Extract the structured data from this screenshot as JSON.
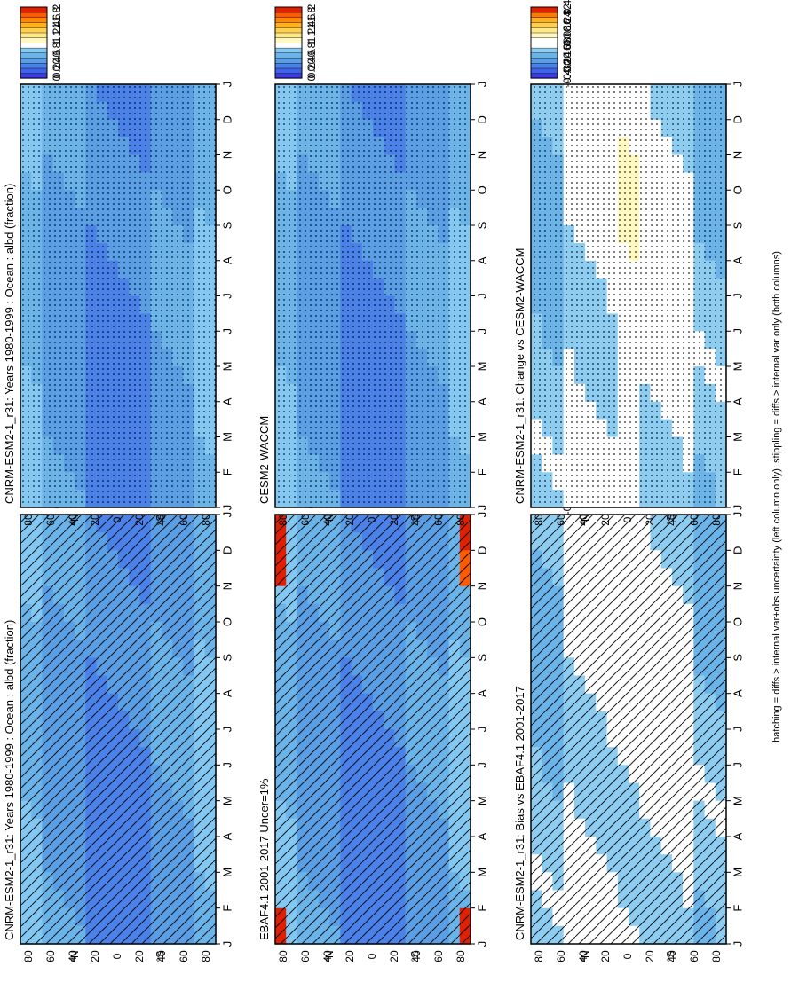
{
  "footer_note": "hatching = diffs > internal var+obs uncertainty (left column only); stippling = diffs > internal var only (both columns)",
  "colors": {
    "abs_scale": [
      "#3a3ae8",
      "#3f62e6",
      "#4b82ea",
      "#5a9ee6",
      "#6ab4ea",
      "#82c8f2",
      "#ffffff",
      "#fff8c0",
      "#ffe88a",
      "#ffd050",
      "#ffb020",
      "#ff8800",
      "#ff5a00",
      "#e02000"
    ],
    "diff_scale": [
      "#3a3ae8",
      "#3f62e6",
      "#4b82ea",
      "#5a9ee6",
      "#6ab4ea",
      "#8ecdf2",
      "#ffffff",
      "#ffffff",
      "#fff8c0",
      "#ffe88a",
      "#ffd050",
      "#ffb020",
      "#ff7a00",
      "#e02000"
    ]
  },
  "chart_data": [
    {
      "id": "model_abs",
      "type": "heatmap",
      "title": "CNRM-ESM2-1_r31: Years 1980-1999 : Ocean : albd (fraction)",
      "x_months": [
        "J",
        "F",
        "M",
        "A",
        "M",
        "J",
        "J",
        "A",
        "S",
        "O",
        "N",
        "D",
        "J"
      ],
      "y_ticks": [
        "80",
        "60",
        "40",
        "20",
        "0",
        "20",
        "40",
        "60",
        "80"
      ],
      "y_labels": {
        "north": "°N",
        "south": "°S"
      },
      "ylim": [
        -90,
        90
      ],
      "colorbar_ticks": [
        "2",
        "1.8",
        "1.6",
        "1.4",
        "1.2",
        "1",
        "0.8",
        "0.6",
        "0.4",
        "0.2",
        "0"
      ],
      "overlay": "hatching"
    },
    {
      "id": "obs_abs",
      "type": "heatmap",
      "title": "EBAF4.1 2001-2017 Uncer=1%",
      "x_months": [
        "J",
        "F",
        "M",
        "A",
        "M",
        "J",
        "J",
        "A",
        "S",
        "O",
        "N",
        "D",
        "J"
      ],
      "y_ticks": [
        "80",
        "60",
        "40",
        "20",
        "0",
        "20",
        "40",
        "60",
        "80"
      ],
      "y_labels": {
        "north": "°N",
        "south": "°S"
      },
      "ylim": [
        -90,
        90
      ],
      "colorbar_ticks": [
        "2",
        "1.8",
        "1.6",
        "1.4",
        "1.2",
        "1",
        "0.8",
        "0.6",
        "0.4",
        "0.2",
        "0"
      ],
      "overlay": "hatching"
    },
    {
      "id": "bias_obs",
      "type": "heatmap",
      "title": "CNRM-ESM2-1_r31: Bias vs EBAF4.1 2001-2017",
      "x_months": [
        "J",
        "F",
        "M",
        "A",
        "M",
        "J",
        "J",
        "A",
        "S",
        "O",
        "N",
        "D",
        "J"
      ],
      "y_ticks": [
        "80",
        "60",
        "40",
        "20",
        "0",
        "20",
        "40",
        "60",
        "80"
      ],
      "y_labels": {
        "north": "°N",
        "south": "°S"
      },
      "ylim": [
        -90,
        90
      ],
      "colorbar_ticks": [
        "0.4",
        "0.32",
        "0.24",
        "0.16",
        "0.08",
        "0",
        "-0.08",
        "-0.16",
        "-0.24",
        "-0.32",
        "-0.4"
      ],
      "overlay": "hatching"
    },
    {
      "id": "model_abs_2",
      "type": "heatmap",
      "title": "CNRM-ESM2-1_r31: Years 1980-1999 : Ocean : albd (fraction)",
      "x_months": [
        "J",
        "F",
        "M",
        "A",
        "M",
        "J",
        "J",
        "A",
        "S",
        "O",
        "N",
        "D",
        "J"
      ],
      "y_ticks": [
        "80",
        "60",
        "40",
        "20",
        "0",
        "20",
        "40",
        "60",
        "80"
      ],
      "y_labels": {
        "north": "°N",
        "south": "°S"
      },
      "ylim": [
        -90,
        90
      ],
      "colorbar_ticks": [
        "2",
        "1.8",
        "1.6",
        "1.4",
        "1.2",
        "1",
        "0.8",
        "0.6",
        "0.4",
        "0.2",
        "0"
      ],
      "overlay": "stippling"
    },
    {
      "id": "ref_abs",
      "type": "heatmap",
      "title": "CESM2-WACCM",
      "x_months": [
        "J",
        "F",
        "M",
        "A",
        "M",
        "J",
        "J",
        "A",
        "S",
        "O",
        "N",
        "D",
        "J"
      ],
      "y_ticks": [
        "80",
        "60",
        "40",
        "20",
        "0",
        "20",
        "40",
        "60",
        "80"
      ],
      "y_labels": {
        "north": "°N",
        "south": "°S"
      },
      "ylim": [
        -90,
        90
      ],
      "colorbar_ticks": [
        "2",
        "1.8",
        "1.6",
        "1.4",
        "1.2",
        "1",
        "0.8",
        "0.6",
        "0.4",
        "0.2",
        "0"
      ],
      "overlay": "stippling"
    },
    {
      "id": "change_ref",
      "type": "heatmap",
      "title": "CNRM-ESM2-1_r31: Change vs CESM2-WACCM",
      "x_months": [
        "J",
        "F",
        "M",
        "A",
        "M",
        "J",
        "J",
        "A",
        "S",
        "O",
        "N",
        "D",
        "J"
      ],
      "y_ticks": [
        "80",
        "60",
        "40",
        "20",
        "0",
        "20",
        "40",
        "60",
        "80"
      ],
      "y_labels": {
        "north": "°N",
        "south": "°S"
      },
      "ylim": [
        -90,
        90
      ],
      "colorbar_ticks": [
        "0.4",
        "0.32",
        "0.24",
        "0.16",
        "0.08",
        "0",
        "-0.08",
        "-0.16",
        "-0.24",
        "-0.32",
        "-0.4"
      ],
      "overlay": "stippling"
    }
  ]
}
